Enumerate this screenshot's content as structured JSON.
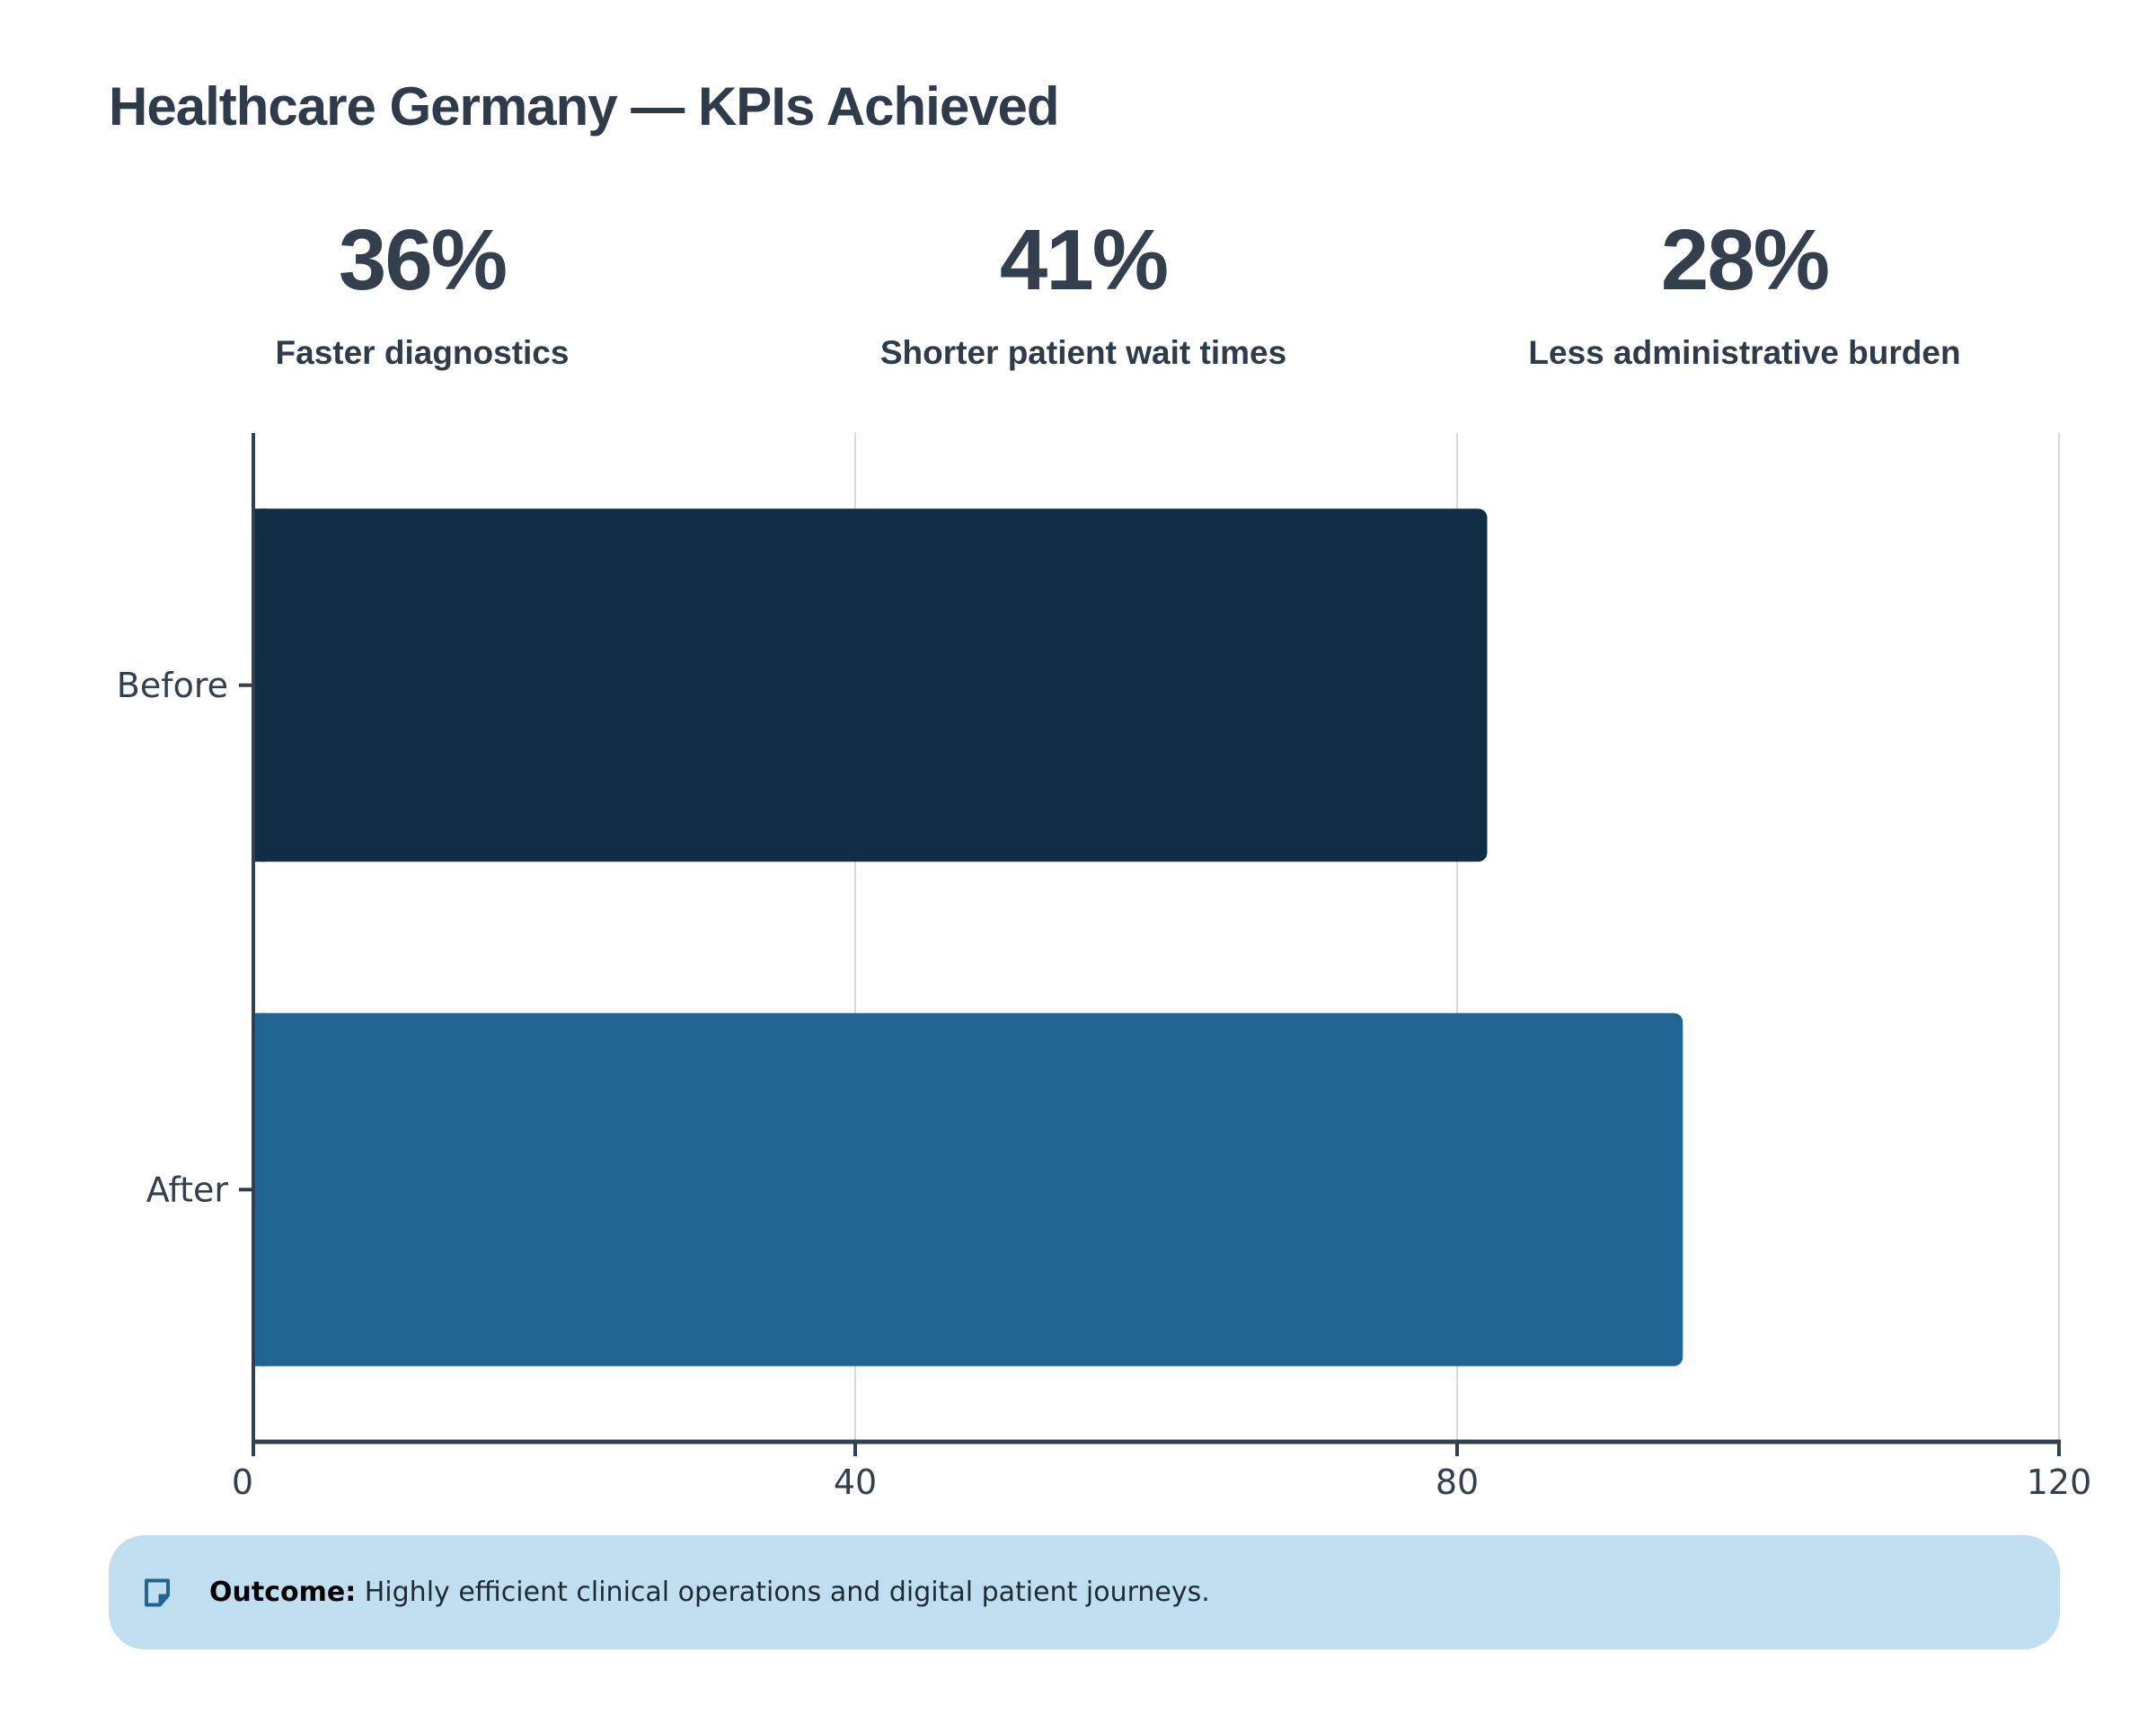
{
  "title": "Healthcare Germany — KPIs Achieved",
  "kpis": [
    {
      "value": "36%",
      "label": "Faster diagnostics"
    },
    {
      "value": "41%",
      "label": "Shorter patient wait times"
    },
    {
      "value": "28%",
      "label": "Less administrative burden"
    }
  ],
  "chart_data": {
    "type": "bar",
    "orientation": "horizontal",
    "title": "",
    "xlabel": "",
    "ylabel": "",
    "categories": [
      "Before",
      "After"
    ],
    "values": [
      82,
      95
    ],
    "colors": [
      "#0f2d44",
      "#1e6593"
    ],
    "xlim": [
      0,
      120
    ],
    "xticks": [
      0,
      40,
      80,
      120
    ],
    "grid": "vertical"
  },
  "outcome": {
    "label": "Outcome:",
    "text": "Highly efficient clinical operations and digital patient journeys.",
    "icon": "note-icon",
    "icon_color": "#1e6593"
  },
  "colors": {
    "text": "#2d3b4a",
    "axis": "#333f4c",
    "grid": "#d9d9d9",
    "outcome_bg": "#bfdff1"
  }
}
